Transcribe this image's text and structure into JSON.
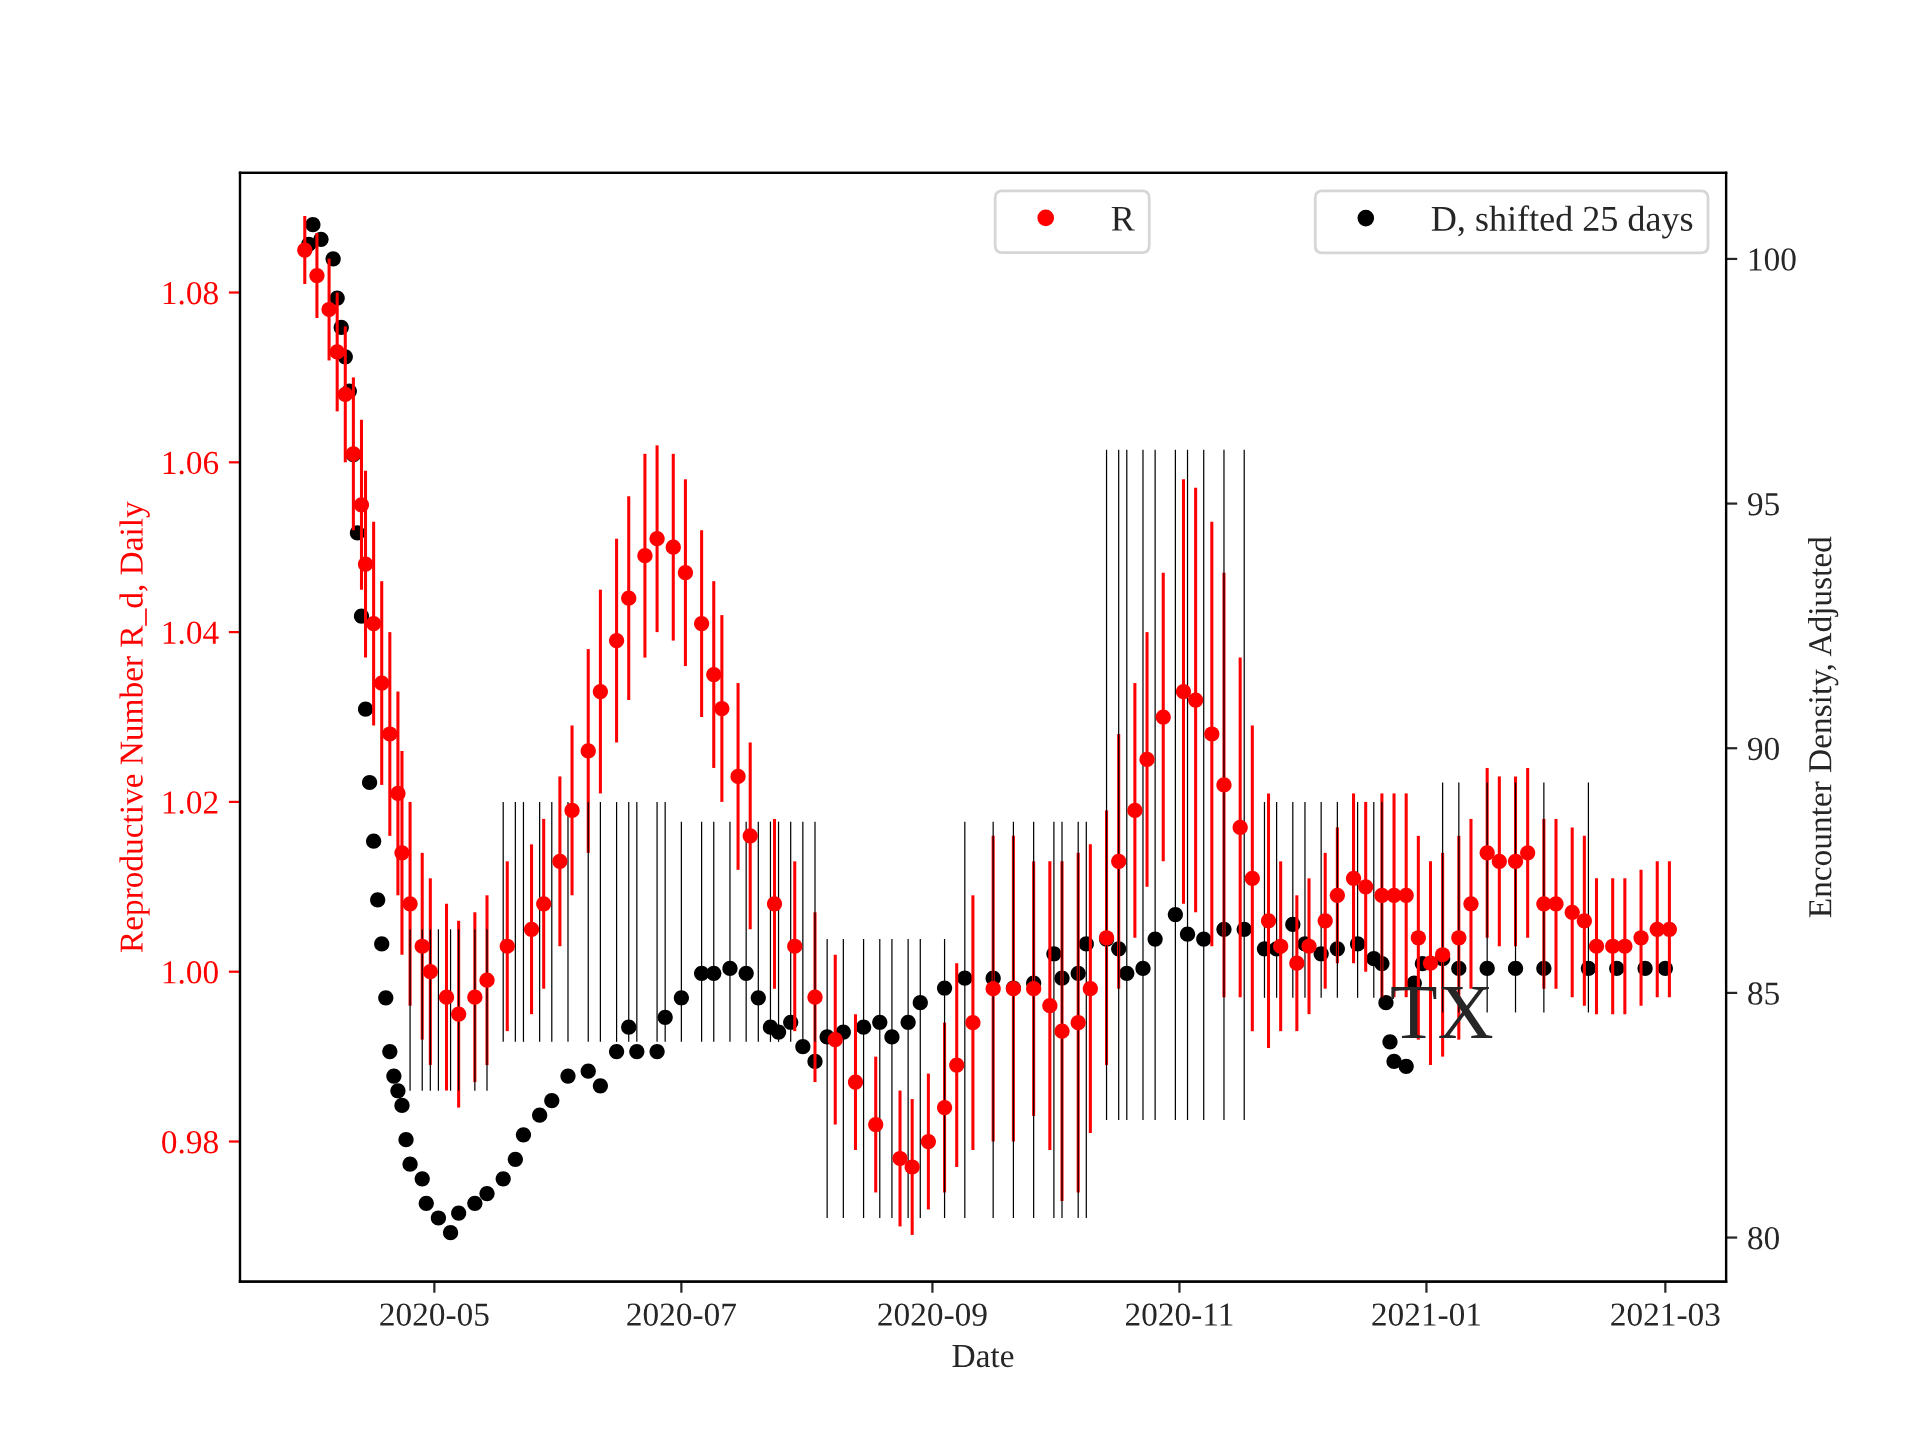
{
  "chart_data": {
    "type": "scatter",
    "xlabel": "Date",
    "ylabel": "Reproductive Number R_d, Daily",
    "y2label": "Encounter Density, Adjusted",
    "xlim": [
      "2020-03-14",
      "2021-03-16"
    ],
    "xticks": [
      {
        "value": "2020-05-01",
        "label": "2020-05"
      },
      {
        "value": "2020-07-01",
        "label": "2020-07"
      },
      {
        "value": "2020-09-01",
        "label": "2020-09"
      },
      {
        "value": "2020-11-01",
        "label": "2020-11"
      },
      {
        "value": "2021-01-01",
        "label": "2021-01"
      },
      {
        "value": "2021-03-01",
        "label": "2021-03"
      }
    ],
    "ylim": [
      0.9635,
      1.0941
    ],
    "yticks": [
      0.98,
      {
        "value": 1.0,
        "label": "1.00"
      },
      1.02,
      1.04,
      1.06,
      1.08
    ],
    "y2lim": [
      79.1,
      101.76
    ],
    "y2ticks": [
      80,
      85,
      90,
      95,
      100
    ],
    "legend": "top right",
    "marker": "circle",
    "grid": false,
    "annotations": [
      {
        "text": "TX",
        "x": "2020-12-23",
        "y": 0.9944
      }
    ],
    "series": [
      {
        "name": "R",
        "color": "#ff0000",
        "x": [
          "2020-03-30",
          "2020-04-02",
          "2020-04-05",
          "2020-04-07",
          "2020-04-09",
          "2020-04-11",
          "2020-04-13",
          "2020-04-14",
          "2020-04-16",
          "2020-04-18",
          "2020-04-20",
          "2020-04-22",
          "2020-04-23",
          "2020-04-25",
          "2020-04-28",
          "2020-04-30",
          "2020-05-04",
          "2020-05-07",
          "2020-05-11",
          "2020-05-14",
          "2020-05-19",
          "2020-05-25",
          "2020-05-28",
          "2020-06-01",
          "2020-06-04",
          "2020-06-08",
          "2020-06-11",
          "2020-06-15",
          "2020-06-18",
          "2020-06-22",
          "2020-06-25",
          "2020-06-29",
          "2020-07-02",
          "2020-07-06",
          "2020-07-09",
          "2020-07-11",
          "2020-07-15",
          "2020-07-18",
          "2020-07-24",
          "2020-07-29",
          "2020-08-03",
          "2020-08-08",
          "2020-08-13",
          "2020-08-18",
          "2020-08-24",
          "2020-08-27",
          "2020-08-31",
          "2020-09-04",
          "2020-09-07",
          "2020-09-11",
          "2020-09-16",
          "2020-09-21",
          "2020-09-26",
          "2020-09-30",
          "2020-10-03",
          "2020-10-07",
          "2020-10-10",
          "2020-10-14",
          "2020-10-17",
          "2020-10-21",
          "2020-10-24",
          "2020-10-28",
          "2020-11-02",
          "2020-11-05",
          "2020-11-09",
          "2020-11-12",
          "2020-11-16",
          "2020-11-19",
          "2020-11-23",
          "2020-11-26",
          "2020-11-30",
          "2020-12-03",
          "2020-12-07",
          "2020-12-10",
          "2020-12-14",
          "2020-12-17",
          "2020-12-21",
          "2020-12-24",
          "2020-12-27",
          "2020-12-30",
          "2021-01-02",
          "2021-01-05",
          "2021-01-09",
          "2021-01-12",
          "2021-01-16",
          "2021-01-19",
          "2021-01-23",
          "2021-01-26",
          "2021-01-30",
          "2021-02-02",
          "2021-02-06",
          "2021-02-09",
          "2021-02-12",
          "2021-02-16",
          "2021-02-19",
          "2021-02-23",
          "2021-02-27",
          "2021-03-02"
        ],
        "values": [
          1.085,
          1.082,
          1.078,
          1.073,
          1.068,
          1.061,
          1.055,
          1.048,
          1.041,
          1.034,
          1.028,
          1.021,
          1.014,
          1.008,
          1.003,
          1.0,
          0.997,
          0.995,
          0.997,
          0.999,
          1.003,
          1.005,
          1.008,
          1.013,
          1.019,
          1.026,
          1.033,
          1.039,
          1.044,
          1.049,
          1.051,
          1.05,
          1.047,
          1.041,
          1.035,
          1.031,
          1.023,
          1.016,
          1.008,
          1.003,
          0.997,
          0.992,
          0.987,
          0.982,
          0.978,
          0.977,
          0.98,
          0.984,
          0.989,
          0.994,
          0.998,
          0.998,
          0.998,
          0.996,
          0.993,
          0.994,
          0.998,
          1.004,
          1.013,
          1.019,
          1.025,
          1.03,
          1.033,
          1.032,
          1.028,
          1.022,
          1.017,
          1.011,
          1.006,
          1.003,
          1.001,
          1.003,
          1.006,
          1.009,
          1.011,
          1.01,
          1.009,
          1.009,
          1.009,
          1.004,
          1.001,
          1.002,
          1.004,
          1.008,
          1.014,
          1.013,
          1.013,
          1.014,
          1.008,
          1.008,
          1.007,
          1.006,
          1.003,
          1.003,
          1.003,
          1.004,
          1.005,
          1.005
        ],
        "errors": [
          0.004,
          0.005,
          0.006,
          0.007,
          0.008,
          0.009,
          0.01,
          0.011,
          0.012,
          0.012,
          0.012,
          0.012,
          0.012,
          0.012,
          0.011,
          0.011,
          0.011,
          0.011,
          0.01,
          0.01,
          0.01,
          0.01,
          0.01,
          0.01,
          0.01,
          0.012,
          0.012,
          0.012,
          0.012,
          0.012,
          0.011,
          0.011,
          0.011,
          0.011,
          0.011,
          0.011,
          0.011,
          0.011,
          0.01,
          0.01,
          0.01,
          0.01,
          0.008,
          0.008,
          0.008,
          0.008,
          0.008,
          0.01,
          0.012,
          0.015,
          0.018,
          0.018,
          0.015,
          0.017,
          0.02,
          0.02,
          0.017,
          0.015,
          0.015,
          0.015,
          0.015,
          0.017,
          0.025,
          0.025,
          0.025,
          0.025,
          0.02,
          0.018,
          0.015,
          0.01,
          0.008,
          0.008,
          0.008,
          0.008,
          0.01,
          0.01,
          0.012,
          0.012,
          0.012,
          0.012,
          0.012,
          0.012,
          0.012,
          0.01,
          0.01,
          0.01,
          0.01,
          0.01,
          0.01,
          0.01,
          0.01,
          0.01,
          0.008,
          0.008,
          0.008,
          0.008,
          0.008,
          0.008
        ]
      },
      {
        "name": "D, shifted 25 days",
        "color": "#000000",
        "axis": "y2",
        "x": [
          "2020-03-31",
          "2020-04-01",
          "2020-04-03",
          "2020-04-06",
          "2020-04-07",
          "2020-04-08",
          "2020-04-09",
          "2020-04-10",
          "2020-04-11",
          "2020-04-12",
          "2020-04-13",
          "2020-04-14",
          "2020-04-15",
          "2020-04-16",
          "2020-04-17",
          "2020-04-18",
          "2020-04-19",
          "2020-04-20",
          "2020-04-21",
          "2020-04-22",
          "2020-04-23",
          "2020-04-24",
          "2020-04-25",
          "2020-04-28",
          "2020-04-29",
          "2020-05-02",
          "2020-05-05",
          "2020-05-07",
          "2020-05-11",
          "2020-05-14",
          "2020-05-18",
          "2020-05-21",
          "2020-05-23",
          "2020-05-27",
          "2020-05-30",
          "2020-06-03",
          "2020-06-08",
          "2020-06-11",
          "2020-06-15",
          "2020-06-18",
          "2020-06-20",
          "2020-06-25",
          "2020-06-27",
          "2020-07-01",
          "2020-07-06",
          "2020-07-09",
          "2020-07-13",
          "2020-07-17",
          "2020-07-20",
          "2020-07-23",
          "2020-07-25",
          "2020-07-28",
          "2020-07-31",
          "2020-08-03",
          "2020-08-06",
          "2020-08-10",
          "2020-08-15",
          "2020-08-19",
          "2020-08-22",
          "2020-08-26",
          "2020-08-29",
          "2020-09-04",
          "2020-09-09",
          "2020-09-16",
          "2020-09-21",
          "2020-09-26",
          "2020-10-01",
          "2020-10-03",
          "2020-10-07",
          "2020-10-09",
          "2020-10-14",
          "2020-10-17",
          "2020-10-19",
          "2020-10-23",
          "2020-10-26",
          "2020-10-31",
          "2020-11-03",
          "2020-11-07",
          "2020-11-12",
          "2020-11-17",
          "2020-11-22",
          "2020-11-25",
          "2020-11-29",
          "2020-12-02",
          "2020-12-06",
          "2020-12-10",
          "2020-12-15",
          "2020-12-19",
          "2020-12-21",
          "2020-12-22",
          "2020-12-23",
          "2020-12-24",
          "2020-12-27",
          "2020-12-29",
          "2020-12-31",
          "2021-01-05",
          "2021-01-09",
          "2021-01-16",
          "2021-01-23",
          "2021-01-30",
          "2021-02-10",
          "2021-02-17",
          "2021-02-24",
          "2021-03-01"
        ],
        "values": [
          100.3,
          100.7,
          100.4,
          100.0,
          99.2,
          98.6,
          98.0,
          97.3,
          96.0,
          94.4,
          92.7,
          90.8,
          89.3,
          88.1,
          86.9,
          86.0,
          84.9,
          83.8,
          83.3,
          83.0,
          82.7,
          82.0,
          81.5,
          81.2,
          80.7,
          80.4,
          80.1,
          80.5,
          80.7,
          80.9,
          81.2,
          81.6,
          82.1,
          82.5,
          82.8,
          83.3,
          83.4,
          83.1,
          83.8,
          84.3,
          83.8,
          83.8,
          84.5,
          84.9,
          85.4,
          85.4,
          85.5,
          85.4,
          84.9,
          84.3,
          84.2,
          84.4,
          83.9,
          83.6,
          84.1,
          84.2,
          84.3,
          84.4,
          84.1,
          84.4,
          84.8,
          85.1,
          85.3,
          85.3,
          85.1,
          85.2,
          85.8,
          85.3,
          85.4,
          86.0,
          86.1,
          85.9,
          85.4,
          85.5,
          86.1,
          86.6,
          86.2,
          86.1,
          86.3,
          86.3,
          85.9,
          85.9,
          86.4,
          86.0,
          85.8,
          85.9,
          86.0,
          85.7,
          85.6,
          84.8,
          84.0,
          83.6,
          83.5,
          85.2,
          85.6,
          85.7,
          85.5,
          85.5,
          85.5,
          85.5,
          85.5,
          85.5,
          85.5,
          85.5
        ]
      },
      {
        "type": "bar",
        "color": "#000000",
        "axis": "y2",
        "x": [
          "2020-04-25",
          "2020-04-28",
          "2020-04-30",
          "2020-05-02",
          "2020-05-05",
          "2020-05-07",
          "2020-05-11",
          "2020-05-14",
          "2020-05-18",
          "2020-05-21",
          "2020-05-23",
          "2020-05-27",
          "2020-05-30",
          "2020-06-03",
          "2020-06-08",
          "2020-06-11",
          "2020-06-15",
          "2020-06-18",
          "2020-06-20",
          "2020-06-25",
          "2020-06-27",
          "2020-07-01",
          "2020-07-06",
          "2020-07-09",
          "2020-07-13",
          "2020-07-17",
          "2020-07-20",
          "2020-07-23",
          "2020-07-25",
          "2020-07-28",
          "2020-07-31",
          "2020-08-03",
          "2020-08-06",
          "2020-08-10",
          "2020-08-15",
          "2020-08-19",
          "2020-08-22",
          "2020-08-26",
          "2020-08-29",
          "2020-09-04",
          "2020-09-09",
          "2020-09-16",
          "2020-09-21",
          "2020-09-26",
          "2020-10-01",
          "2020-10-03",
          "2020-10-07",
          "2020-10-09",
          "2020-10-14",
          "2020-10-17",
          "2020-10-19",
          "2020-10-23",
          "2020-10-26",
          "2020-10-31",
          "2020-11-03",
          "2020-11-07",
          "2020-11-12",
          "2020-11-17",
          "2020-11-22",
          "2020-11-25",
          "2020-11-29",
          "2020-12-02",
          "2020-12-06",
          "2020-12-10",
          "2020-12-15",
          "2020-12-19",
          "2020-12-21",
          "2021-01-05",
          "2021-01-09",
          "2021-01-16",
          "2021-01-23",
          "2021-01-30",
          "2021-02-10"
        ],
        "base": [
          83.0,
          83.0,
          83.0,
          83.0,
          83.0,
          83.0,
          83.0,
          83.0,
          84.0,
          84.0,
          84.0,
          84.0,
          84.0,
          84.0,
          84.0,
          84.0,
          84.0,
          84.0,
          84.0,
          84.0,
          84.0,
          84.0,
          84.0,
          84.0,
          84.0,
          84.0,
          84.0,
          84.0,
          84.0,
          84.0,
          84.0,
          84.0,
          80.4,
          80.4,
          80.4,
          80.4,
          80.4,
          80.4,
          80.4,
          80.4,
          80.4,
          80.4,
          80.4,
          80.4,
          80.4,
          80.4,
          80.4,
          80.4,
          82.4,
          82.4,
          82.4,
          82.4,
          82.4,
          82.4,
          82.4,
          82.4,
          82.4,
          82.4,
          84.9,
          84.9,
          84.9,
          84.9,
          84.9,
          84.9,
          84.9,
          84.9,
          84.9,
          84.6,
          84.6,
          84.6,
          84.6,
          84.6,
          84.6
        ],
        "values": [
          3.3,
          3.3,
          3.3,
          3.3,
          3.3,
          3.3,
          3.3,
          3.3,
          4.9,
          4.9,
          4.9,
          4.9,
          4.9,
          4.9,
          4.9,
          4.9,
          4.9,
          4.9,
          4.9,
          4.9,
          4.9,
          4.5,
          4.5,
          4.5,
          4.5,
          4.5,
          4.5,
          4.5,
          4.5,
          4.5,
          4.5,
          4.5,
          5.7,
          5.7,
          5.7,
          5.7,
          5.7,
          5.7,
          5.7,
          5.7,
          8.1,
          8.1,
          8.1,
          8.1,
          8.1,
          8.1,
          8.1,
          8.1,
          13.7,
          13.7,
          13.7,
          13.7,
          13.7,
          13.7,
          13.7,
          13.7,
          13.7,
          13.7,
          4.0,
          4.0,
          4.0,
          4.0,
          4.0,
          4.0,
          4.0,
          4.0,
          4.0,
          4.7,
          4.7,
          4.7,
          4.7,
          4.7,
          4.7
        ]
      }
    ]
  }
}
